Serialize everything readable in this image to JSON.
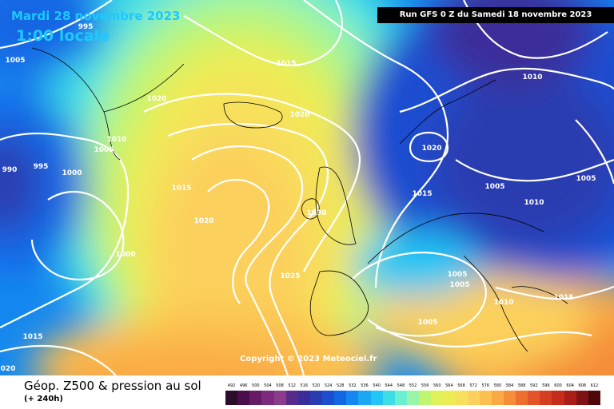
{
  "header": {
    "date": "Mardi 28 novembre 2023",
    "local_time": "1:00 locale",
    "run": "Run GFS 0 Z du Samedi 18 novembre 2023"
  },
  "copyright": "Copyright © 2023 Meteociel.fr",
  "footer": {
    "title": "Géop. Z500 & pression au sol",
    "subtitle": "(+ 240h)"
  },
  "pressure_labels": [
    "995",
    "1005",
    "1015",
    "1020",
    "1020",
    "1010",
    "1005",
    "990",
    "995",
    "1000",
    "1015",
    "1020",
    "1000",
    "1025",
    "1015",
    "020",
    "1030",
    "1020",
    "1015",
    "1010",
    "1005",
    "1010",
    "1005",
    "1005",
    "1005",
    "1010",
    "1015",
    "1005"
  ],
  "legend": {
    "labels": [
      "492",
      "496",
      "500",
      "504",
      "508",
      "512",
      "516",
      "520",
      "524",
      "528",
      "532",
      "536",
      "540",
      "544",
      "548",
      "552",
      "556",
      "560",
      "564",
      "568",
      "572",
      "576",
      "580",
      "584",
      "588",
      "592",
      "596",
      "600",
      "604",
      "608",
      "612"
    ],
    "colors": [
      "#2d0b2b",
      "#4a0f4a",
      "#661b66",
      "#7d2a7d",
      "#8b3c8b",
      "#5a2a8a",
      "#3a2d9a",
      "#2a3db0",
      "#1d4ed0",
      "#1366e4",
      "#1488f0",
      "#1aa8f5",
      "#22c6f4",
      "#3ddde8",
      "#6aefd0",
      "#9af5a8",
      "#c0f570",
      "#dff25a",
      "#eeec55",
      "#f7e05c",
      "#fbd05c",
      "#fcc050",
      "#faa944",
      "#f58e38",
      "#ed6f2e",
      "#e35528",
      "#d63e22",
      "#c42d1c",
      "#a71e16",
      "#7f1212",
      "#4e0808"
    ]
  },
  "colors": {
    "accent_text": "#1ec8ff"
  }
}
